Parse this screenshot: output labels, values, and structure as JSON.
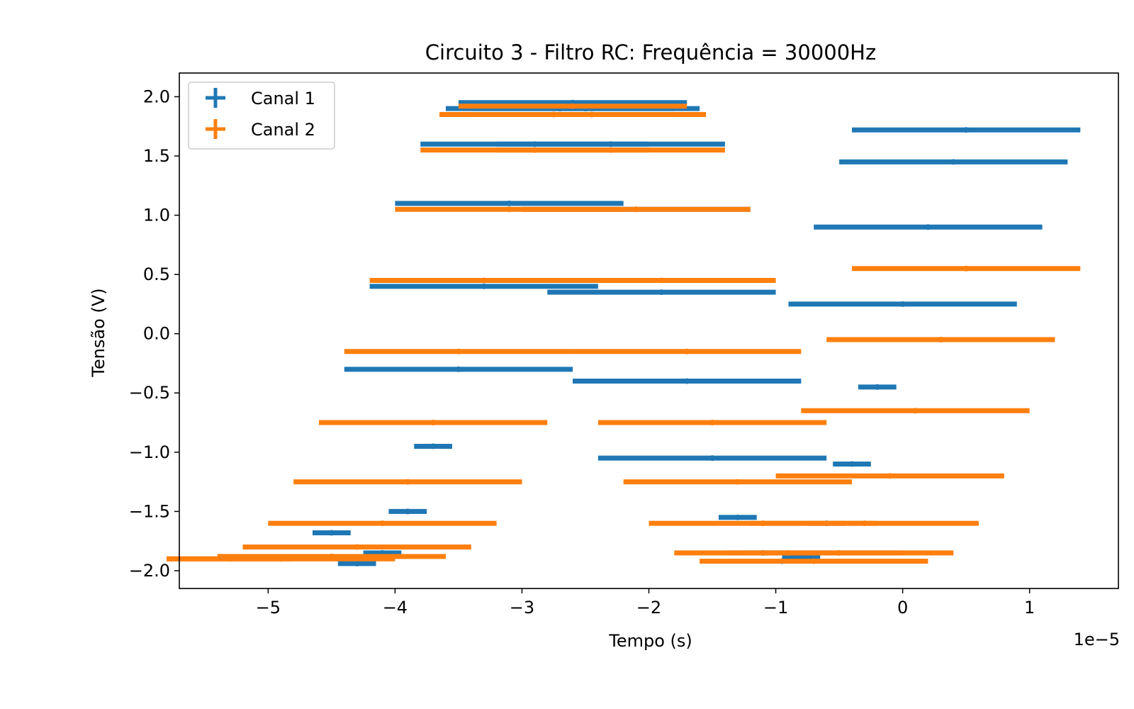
{
  "chart_data": {
    "type": "scatter",
    "title": "Circuito 3 - Filtro RC: Frequência = 30000Hz",
    "xlabel": "Tempo (s)",
    "ylabel": "Tensão (V)",
    "x_offset_label": "1e−5",
    "xlim": [
      -5.7,
      1.7
    ],
    "ylim": [
      -2.15,
      2.2
    ],
    "xticks": [
      -5,
      -4,
      -3,
      -2,
      -1,
      0,
      1
    ],
    "xtick_labels": [
      "−5",
      "−4",
      "−3",
      "−2",
      "−1",
      "0",
      "1"
    ],
    "yticks": [
      2.0,
      1.5,
      1.0,
      0.5,
      0.0,
      -0.5,
      -1.0,
      -1.5,
      -2.0
    ],
    "ytick_labels": [
      "2.0",
      "1.5",
      "1.0",
      "0.5",
      "0.0",
      "−0.5",
      "−1.0",
      "−1.5",
      "−2.0"
    ],
    "grid": false,
    "legend_position": "top-left",
    "series": [
      {
        "name": "Canal 1",
        "color": "#1f77b4",
        "marker": "errorbar-plus",
        "x": [
          -4.5,
          -4.3,
          -4.1,
          -3.9,
          -3.7,
          -3.5,
          -3.3,
          -3.1,
          -2.9,
          -2.7,
          -2.6,
          -2.5,
          -2.3,
          -2.1,
          -1.9,
          -1.7,
          -1.5,
          -1.3,
          -1.1,
          -0.95,
          -0.8,
          -0.6,
          -0.4,
          -0.2,
          0.0,
          0.2,
          0.4,
          0.5
        ],
        "y": [
          -1.68,
          -1.94,
          -1.85,
          -1.5,
          -0.95,
          -0.3,
          0.4,
          1.1,
          1.6,
          1.9,
          1.95,
          1.9,
          1.6,
          1.05,
          0.35,
          -0.4,
          -1.05,
          -1.55,
          -1.85,
          -1.92,
          -1.88,
          -1.6,
          -1.1,
          -0.45,
          0.25,
          0.9,
          1.45,
          1.72
        ],
        "x_error": [
          0.15,
          0.15,
          0.15,
          0.15,
          0.15,
          0.9,
          0.9,
          0.9,
          0.9,
          0.9,
          0.9,
          0.9,
          0.9,
          0.9,
          0.9,
          0.9,
          0.9,
          0.15,
          0.15,
          0.15,
          0.15,
          0.15,
          0.15,
          0.15,
          0.9,
          0.9,
          0.9,
          0.9
        ]
      },
      {
        "name": "Canal 2",
        "color": "#ff7f0e",
        "marker": "errorbar-plus",
        "x": [
          -5.3,
          -4.9,
          -4.5,
          -4.3,
          -4.1,
          -3.9,
          -3.7,
          -3.5,
          -3.3,
          -3.1,
          -2.9,
          -2.75,
          -2.6,
          -2.45,
          -2.3,
          -2.1,
          -1.9,
          -1.7,
          -1.5,
          -1.3,
          -1.1,
          -0.9,
          -0.7,
          -0.5,
          -0.3,
          -0.1,
          0.1,
          0.3,
          0.5
        ],
        "y": [
          -1.9,
          -1.9,
          -1.88,
          -1.8,
          -1.6,
          -1.25,
          -0.75,
          -0.15,
          0.45,
          1.05,
          1.55,
          1.85,
          1.92,
          1.85,
          1.55,
          1.05,
          0.45,
          -0.15,
          -0.75,
          -1.25,
          -1.6,
          -1.85,
          -1.92,
          -1.85,
          -1.6,
          -1.2,
          -0.65,
          -0.05,
          0.55
        ],
        "x_error": [
          0.5,
          0.9,
          0.9,
          0.9,
          0.9,
          0.9,
          0.9,
          0.9,
          0.9,
          0.9,
          0.9,
          0.9,
          0.9,
          0.9,
          0.9,
          0.9,
          0.9,
          0.9,
          0.9,
          0.9,
          0.9,
          0.9,
          0.9,
          0.9,
          0.9,
          0.9,
          0.9,
          0.9,
          0.9
        ]
      }
    ]
  }
}
